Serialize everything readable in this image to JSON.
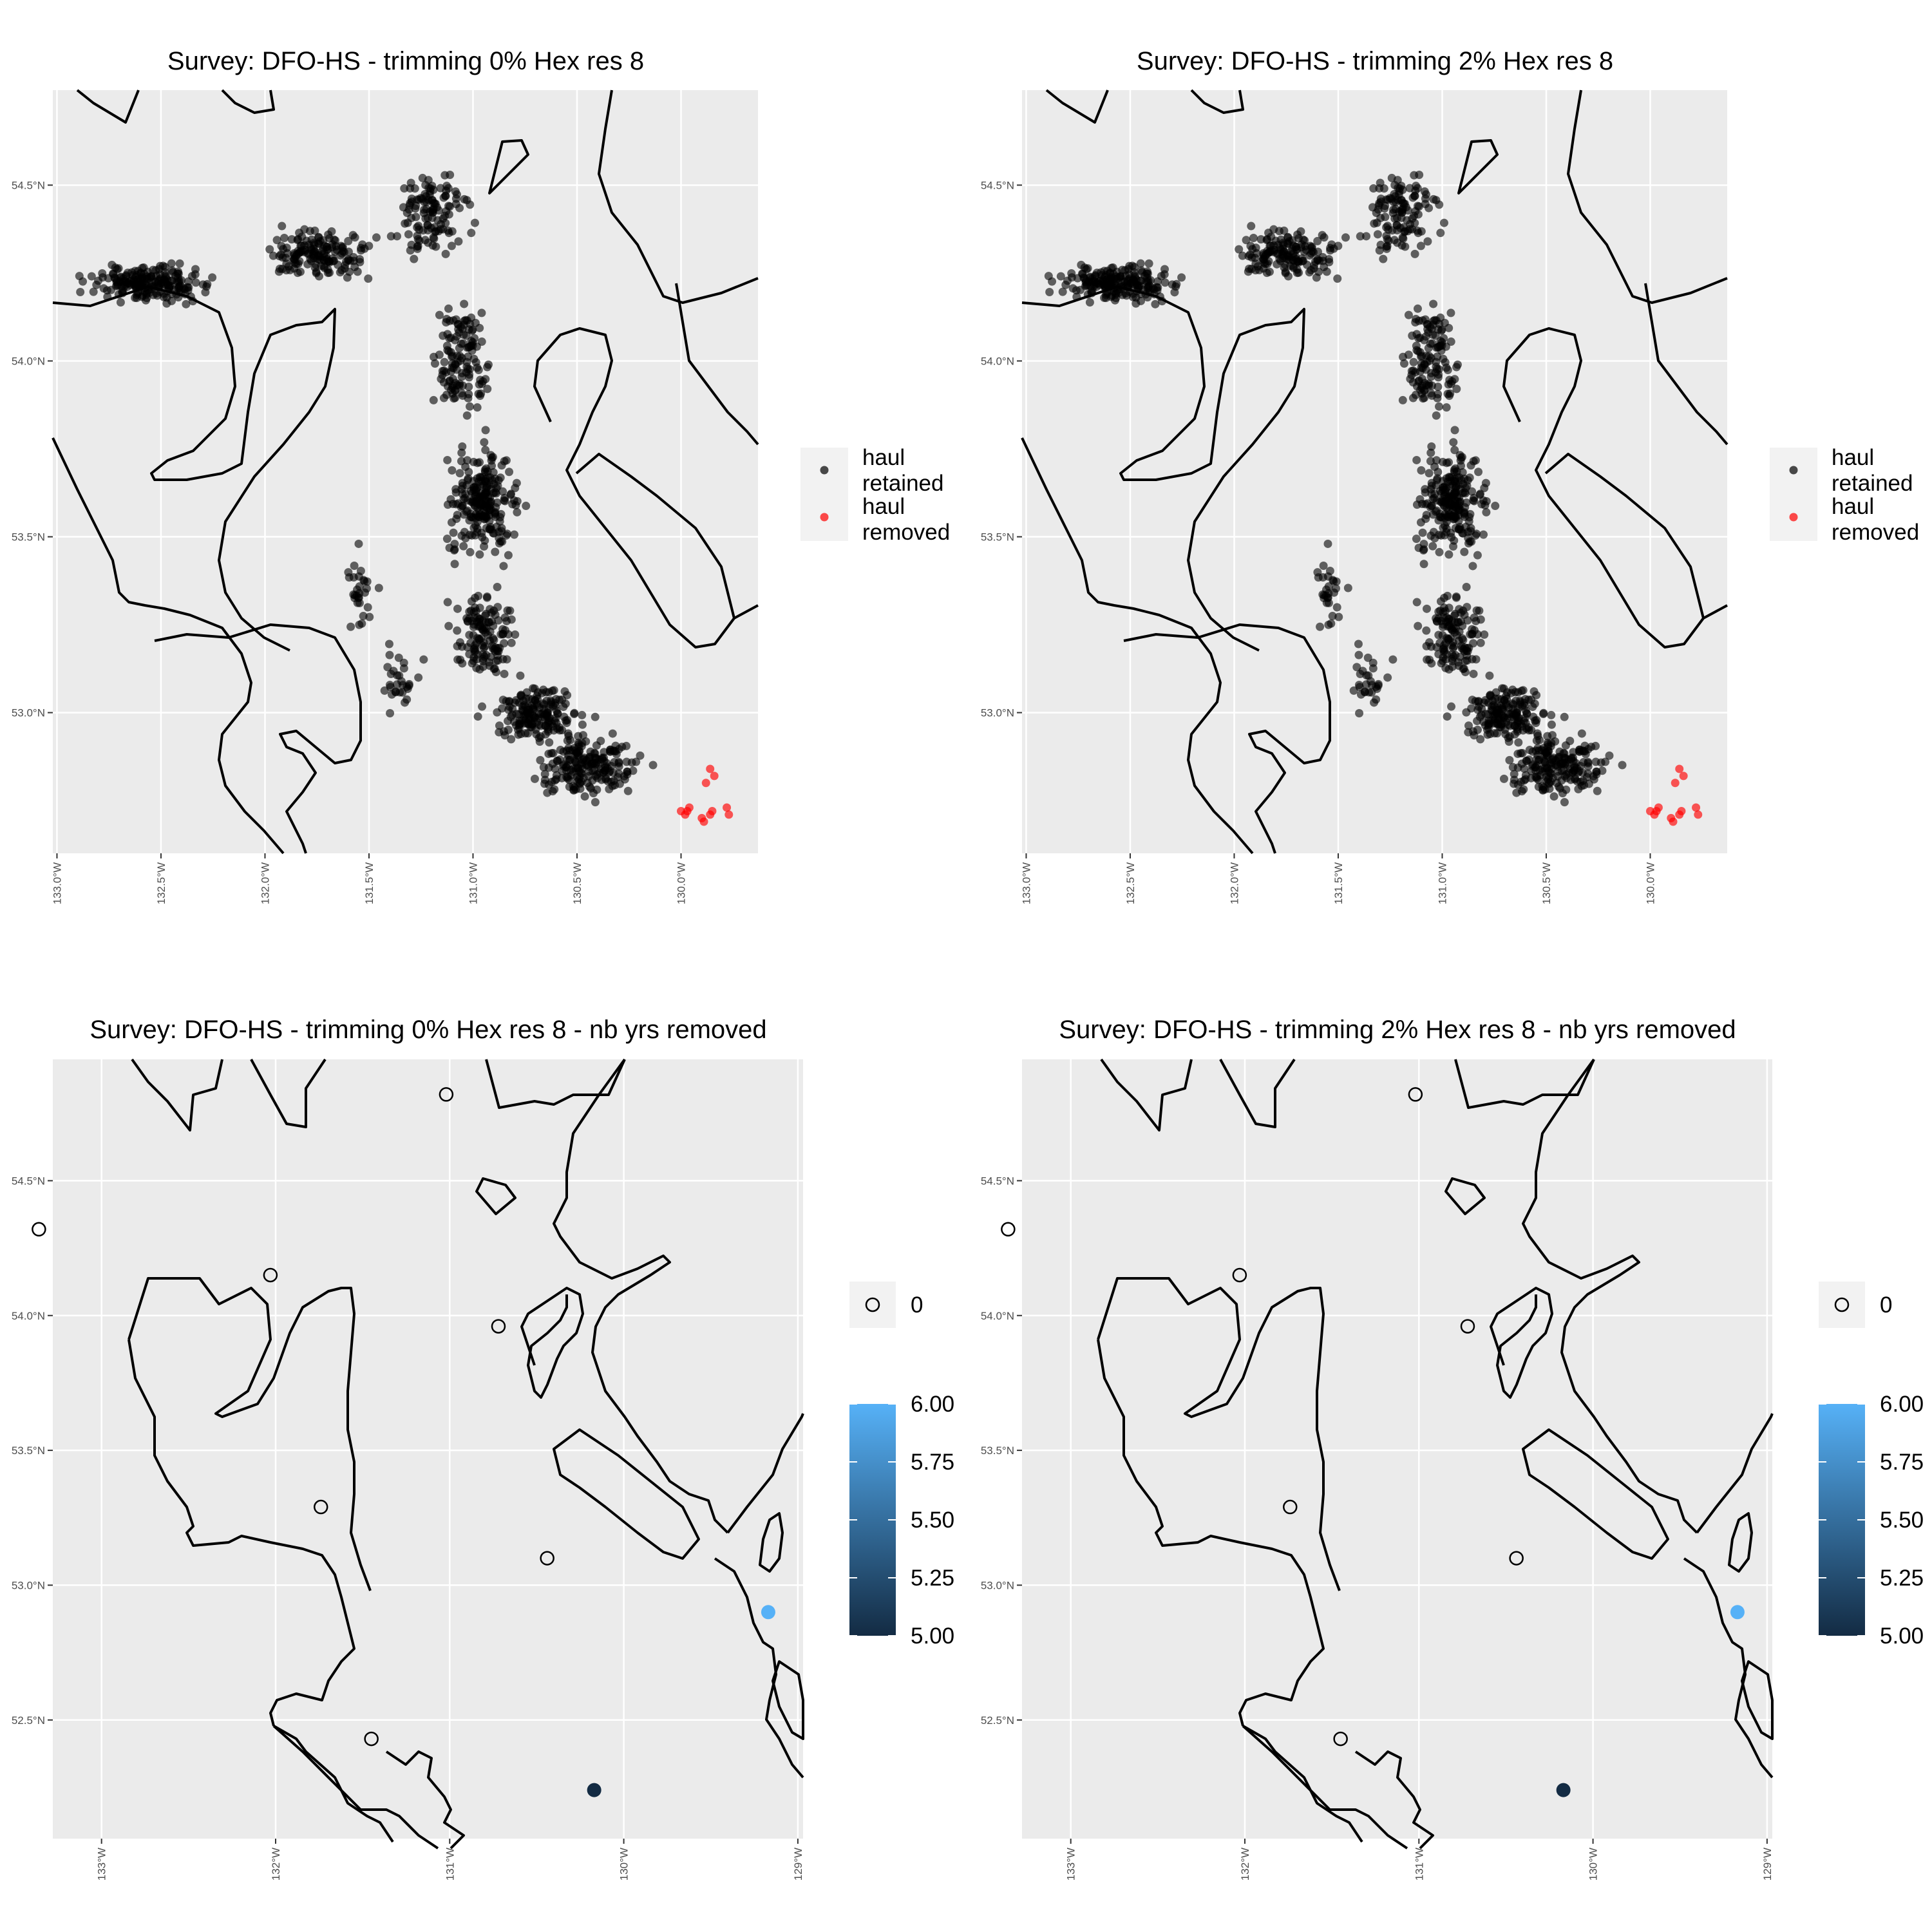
{
  "colors": {
    "panel_bg": "#ebebeb",
    "grid": "#ffffff",
    "coast": "#000000",
    "retained": "#000000",
    "removed": "#ff0000",
    "scale_low": "#132b43",
    "scale_high": "#56b1f7"
  },
  "chart_data": [
    {
      "type": "scatter",
      "title": "Survey: DFO-HS - trimming 0% Hex res 8",
      "xlim": [
        -133.02,
        -129.63
      ],
      "ylim": [
        52.6,
        54.77
      ],
      "x_ticks": [
        -133.0,
        -132.5,
        -132.0,
        -131.5,
        -131.0,
        -130.5,
        -130.0
      ],
      "x_tick_labels": [
        "133.0°W",
        "132.5°W",
        "132.0°W",
        "131.5°W",
        "131.0°W",
        "130.5°W",
        "130.0°W"
      ],
      "y_ticks": [
        53.0,
        53.5,
        54.0,
        54.5
      ],
      "y_tick_labels": [
        "53.0°N",
        "53.5°N",
        "54.0°N",
        "54.5°N"
      ],
      "grid": true,
      "legend": {
        "position": "right",
        "items": [
          {
            "label_line1": "haul",
            "label_line2": "retained",
            "color": "#000000"
          },
          {
            "label_line1": "haul",
            "label_line2": "removed",
            "color": "#ff0000"
          }
        ]
      },
      "series": [
        {
          "name": "haul retained",
          "n_points_approx": 1400
        },
        {
          "name": "haul removed",
          "points": [
            [
              -129.86,
              52.84
            ],
            [
              -129.84,
              52.82
            ],
            [
              -129.88,
              52.8
            ],
            [
              -129.97,
              52.72
            ],
            [
              -130.0,
              52.72
            ],
            [
              -129.96,
              52.73
            ],
            [
              -129.85,
              52.72
            ],
            [
              -129.89,
              52.69
            ],
            [
              -129.86,
              52.71
            ],
            [
              -129.78,
              52.73
            ],
            [
              -129.77,
              52.71
            ],
            [
              -129.9,
              52.7
            ],
            [
              -129.98,
              52.71
            ]
          ]
        }
      ]
    },
    {
      "type": "scatter",
      "title": "Survey: DFO-HS - trimming 2% Hex res 8",
      "xlim": [
        -133.02,
        -129.63
      ],
      "ylim": [
        52.6,
        54.77
      ],
      "x_ticks": [
        -133.0,
        -132.5,
        -132.0,
        -131.5,
        -131.0,
        -130.5,
        -130.0
      ],
      "x_tick_labels": [
        "133.0°W",
        "132.5°W",
        "132.0°W",
        "131.5°W",
        "131.0°W",
        "130.5°W",
        "130.0°W"
      ],
      "y_ticks": [
        53.0,
        53.5,
        54.0,
        54.5
      ],
      "y_tick_labels": [
        "53.0°N",
        "53.5°N",
        "54.0°N",
        "54.5°N"
      ],
      "grid": true,
      "legend": {
        "position": "right",
        "items": [
          {
            "label_line1": "haul",
            "label_line2": "retained",
            "color": "#000000"
          },
          {
            "label_line1": "haul",
            "label_line2": "removed",
            "color": "#ff0000"
          }
        ]
      },
      "series": [
        {
          "name": "haul retained",
          "n_points_approx": 1400
        },
        {
          "name": "haul removed",
          "points": [
            [
              -129.86,
              52.84
            ],
            [
              -129.84,
              52.82
            ],
            [
              -129.88,
              52.8
            ],
            [
              -129.97,
              52.72
            ],
            [
              -130.0,
              52.72
            ],
            [
              -129.96,
              52.73
            ],
            [
              -129.85,
              52.72
            ],
            [
              -129.89,
              52.69
            ],
            [
              -129.86,
              52.71
            ],
            [
              -129.78,
              52.73
            ],
            [
              -129.77,
              52.71
            ],
            [
              -129.9,
              52.7
            ],
            [
              -129.98,
              52.71
            ]
          ]
        }
      ]
    },
    {
      "type": "scatter",
      "title": "Survey: DFO-HS - trimming 0% Hex res 8 - nb yrs removed",
      "xlim": [
        -133.28,
        -128.97
      ],
      "ylim": [
        52.06,
        54.95
      ],
      "x_ticks": [
        -133,
        -132,
        -131,
        -130,
        -129
      ],
      "x_tick_labels": [
        "133°W",
        "132°W",
        "131°W",
        "130°W",
        "129°W"
      ],
      "y_ticks": [
        52.5,
        53.0,
        53.5,
        54.0,
        54.5
      ],
      "y_tick_labels": [
        "52.5°N",
        "53.0°N",
        "53.5°N",
        "54.0°N",
        "54.5°N"
      ],
      "grid": true,
      "legend": {
        "position": "right",
        "shape_item": "0",
        "colorbar_labels": [
          "6.00",
          "5.75",
          "5.50",
          "5.25",
          "5.00"
        ],
        "colorbar_range": [
          5.0,
          6.0
        ]
      },
      "series": [
        {
          "name": "0",
          "points": [
            [
              -133.36,
              54.32
            ],
            [
              -132.03,
              54.15
            ],
            [
              -131.02,
              54.82
            ],
            [
              -130.72,
              53.96
            ],
            [
              -131.74,
              53.29
            ],
            [
              -130.44,
              53.1
            ],
            [
              -131.45,
              52.43
            ]
          ]
        },
        {
          "name": "nb yrs removed",
          "points": [
            {
              "x": -129.17,
              "y": 52.9,
              "value": 6.0
            },
            {
              "x": -130.17,
              "y": 52.24,
              "value": 5.0
            }
          ]
        }
      ]
    },
    {
      "type": "scatter",
      "title": "Survey: DFO-HS - trimming 2% Hex res 8 - nb yrs removed",
      "xlim": [
        -133.28,
        -128.97
      ],
      "ylim": [
        52.06,
        54.95
      ],
      "x_ticks": [
        -133,
        -132,
        -131,
        -130,
        -129
      ],
      "x_tick_labels": [
        "133°W",
        "132°W",
        "131°W",
        "130°W",
        "129°W"
      ],
      "y_ticks": [
        52.5,
        53.0,
        53.5,
        54.0,
        54.5
      ],
      "y_tick_labels": [
        "52.5°N",
        "53.0°N",
        "53.5°N",
        "54.0°N",
        "54.5°N"
      ],
      "grid": true,
      "legend": {
        "position": "right",
        "shape_item": "0",
        "colorbar_labels": [
          "6.00",
          "5.75",
          "5.50",
          "5.25",
          "5.00"
        ],
        "colorbar_range": [
          5.0,
          6.0
        ]
      },
      "series": [
        {
          "name": "0",
          "points": [
            [
              -133.36,
              54.32
            ],
            [
              -132.03,
              54.15
            ],
            [
              -131.02,
              54.82
            ],
            [
              -130.72,
              53.96
            ],
            [
              -131.74,
              53.29
            ],
            [
              -130.44,
              53.1
            ],
            [
              -131.45,
              52.43
            ]
          ]
        },
        {
          "name": "nb yrs removed",
          "points": [
            {
              "x": -129.17,
              "y": 52.9,
              "value": 6.0
            },
            {
              "x": -130.17,
              "y": 52.24,
              "value": 5.0
            }
          ]
        }
      ]
    }
  ]
}
